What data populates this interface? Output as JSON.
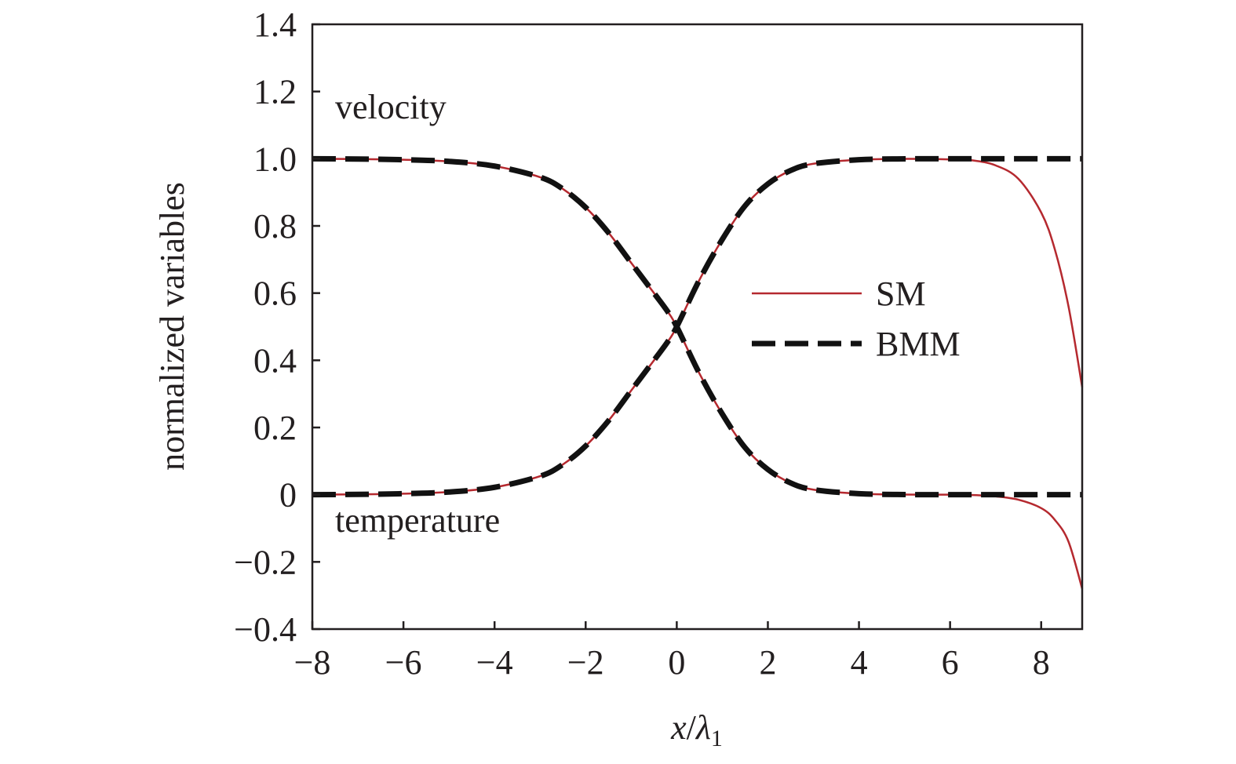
{
  "chart_data": {
    "type": "line",
    "title": "",
    "xlabel": {
      "var": "x",
      "sep": "/",
      "sym": "λ",
      "sub": "1"
    },
    "ylabel": "normalized variables",
    "xlim": [
      -8,
      8.9
    ],
    "ylim": [
      -0.4,
      1.4
    ],
    "xticks": [
      -8,
      -6,
      -4,
      -2,
      0,
      2,
      4,
      6,
      8
    ],
    "xtick_labels": [
      "−8",
      "−6",
      "−4",
      "−2",
      "0",
      "2",
      "4",
      "6",
      "8"
    ],
    "yticks": [
      -0.4,
      -0.2,
      0,
      0.2,
      0.4,
      0.6,
      0.8,
      1.0,
      1.2,
      1.4
    ],
    "ytick_labels": [
      "−0.4",
      "−0.2",
      "0",
      "0.2",
      "0.4",
      "0.6",
      "0.8",
      "1.0",
      "1.2",
      "1.4"
    ],
    "grid": false,
    "legend_position": "center-right",
    "annotations": [
      {
        "name": "velocity-label",
        "text": "velocity",
        "x": -7.5,
        "y": 1.12
      },
      {
        "name": "temperature-label",
        "text": "temperature",
        "x": -7.5,
        "y": -0.11
      }
    ],
    "series": [
      {
        "name": "SM",
        "legend": true,
        "style": "solid",
        "color": "#b5292f",
        "width": 2.5,
        "x": [
          -8,
          -7,
          -6,
          -5,
          -4,
          -3,
          -2.5,
          -2,
          -1.5,
          -1,
          -0.5,
          -0.2,
          0,
          0.5,
          1,
          1.5,
          2,
          2.5,
          3,
          4,
          5,
          6,
          6.5,
          7,
          7.5,
          8,
          8.3,
          8.6,
          8.9
        ],
        "values": [
          1.0,
          0.999,
          0.997,
          0.992,
          0.978,
          0.945,
          0.91,
          0.855,
          0.78,
          0.69,
          0.6,
          0.545,
          0.5,
          0.36,
          0.24,
          0.14,
          0.075,
          0.035,
          0.015,
          0.003,
          0.0005,
          0.0,
          -0.001,
          -0.005,
          -0.015,
          -0.04,
          -0.075,
          -0.14,
          -0.28
        ]
      },
      {
        "name": "SM",
        "legend": false,
        "style": "solid",
        "color": "#b5292f",
        "width": 2.5,
        "x": [
          -8,
          -7,
          -6,
          -5,
          -4,
          -3,
          -2.5,
          -2,
          -1.5,
          -1,
          -0.5,
          -0.2,
          0,
          0.5,
          1,
          1.5,
          2,
          2.5,
          3,
          4,
          5,
          6,
          6.5,
          7,
          7.5,
          8,
          8.3,
          8.6,
          8.9
        ],
        "values": [
          0.0,
          0.001,
          0.003,
          0.008,
          0.022,
          0.055,
          0.09,
          0.145,
          0.22,
          0.31,
          0.4,
          0.455,
          0.5,
          0.64,
          0.76,
          0.86,
          0.925,
          0.965,
          0.985,
          0.997,
          0.9995,
          0.998,
          0.995,
          0.98,
          0.94,
          0.84,
          0.73,
          0.56,
          0.32
        ]
      },
      {
        "name": "BMM",
        "legend": true,
        "style": "dashed",
        "color": "#111111",
        "width": 7,
        "x": [
          -8,
          -7,
          -6,
          -5,
          -4,
          -3,
          -2.5,
          -2,
          -1.5,
          -1,
          -0.5,
          -0.2,
          0,
          0.5,
          1,
          1.5,
          2,
          2.5,
          3,
          4,
          5,
          6,
          7,
          8,
          8.9
        ],
        "values": [
          1.0,
          0.999,
          0.997,
          0.992,
          0.978,
          0.945,
          0.91,
          0.855,
          0.78,
          0.69,
          0.6,
          0.545,
          0.5,
          0.36,
          0.24,
          0.14,
          0.075,
          0.035,
          0.015,
          0.003,
          0.0005,
          0.0,
          0.0,
          0.0,
          0.0
        ]
      },
      {
        "name": "BMM",
        "legend": false,
        "style": "dashed",
        "color": "#111111",
        "width": 7,
        "x": [
          -8,
          -7,
          -6,
          -5,
          -4,
          -3,
          -2.5,
          -2,
          -1.5,
          -1,
          -0.5,
          -0.2,
          0,
          0.5,
          1,
          1.5,
          2,
          2.5,
          3,
          4,
          5,
          6,
          7,
          8,
          8.9
        ],
        "values": [
          0.0,
          0.001,
          0.003,
          0.008,
          0.022,
          0.055,
          0.09,
          0.145,
          0.22,
          0.31,
          0.4,
          0.455,
          0.5,
          0.64,
          0.76,
          0.86,
          0.925,
          0.965,
          0.985,
          0.997,
          0.9995,
          1.0,
          1.0,
          1.0,
          1.0
        ]
      }
    ]
  }
}
